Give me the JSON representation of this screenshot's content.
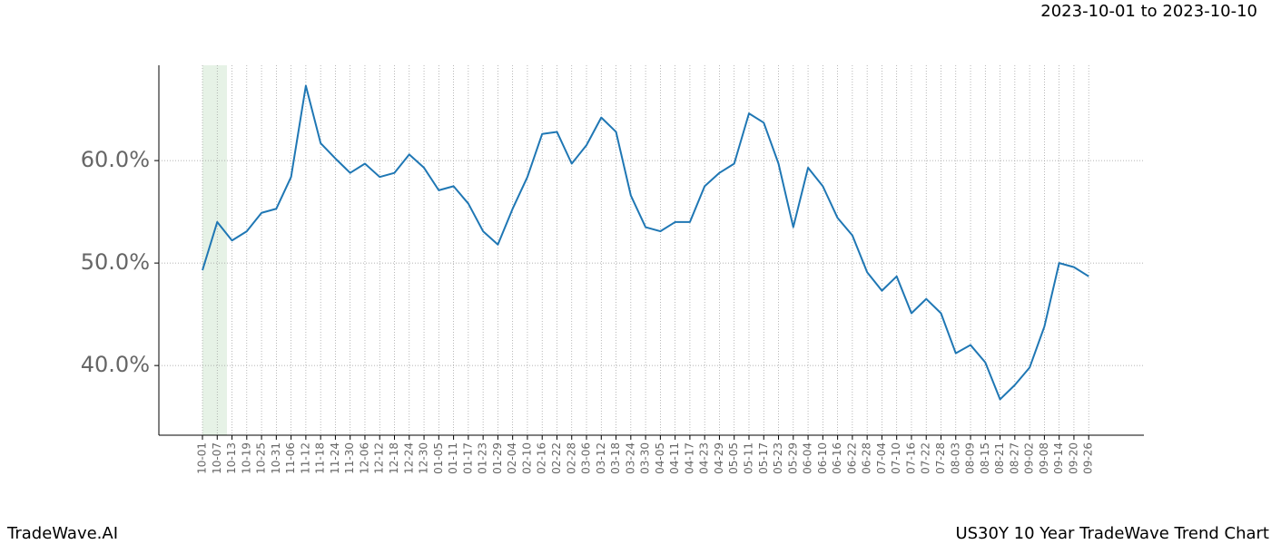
{
  "header": {
    "date_range": "2023-10-01 to 2023-10-10"
  },
  "footer": {
    "brand": "TradeWave.AI",
    "caption": "US30Y 10 Year TradeWave Trend Chart"
  },
  "chart_data": {
    "type": "line",
    "categories": [
      "10-01",
      "10-07",
      "10-13",
      "10-19",
      "10-25",
      "10-31",
      "11-06",
      "11-12",
      "11-18",
      "11-24",
      "11-30",
      "12-06",
      "12-12",
      "12-18",
      "12-24",
      "12-30",
      "01-05",
      "01-11",
      "01-17",
      "01-23",
      "01-29",
      "02-04",
      "02-10",
      "02-16",
      "02-22",
      "02-28",
      "03-06",
      "03-12",
      "03-18",
      "03-24",
      "03-30",
      "04-05",
      "04-11",
      "04-17",
      "04-23",
      "04-29",
      "05-05",
      "05-11",
      "05-17",
      "05-23",
      "05-29",
      "06-04",
      "06-10",
      "06-16",
      "06-22",
      "06-28",
      "07-04",
      "07-10",
      "07-16",
      "07-22",
      "07-28",
      "08-03",
      "08-09",
      "08-15",
      "08-21",
      "08-27",
      "09-02",
      "09-08",
      "09-14",
      "09-20",
      "09-26"
    ],
    "values": [
      49.3,
      54.0,
      52.2,
      53.1,
      54.9,
      55.3,
      58.4,
      67.3,
      61.7,
      60.2,
      58.8,
      59.7,
      58.4,
      58.8,
      60.6,
      59.3,
      57.1,
      57.5,
      55.8,
      53.1,
      51.8,
      55.3,
      58.4,
      62.6,
      62.8,
      59.7,
      61.5,
      64.2,
      62.8,
      56.6,
      53.5,
      53.1,
      54.0,
      54.0,
      57.5,
      58.8,
      59.7,
      64.6,
      63.7,
      59.7,
      53.5,
      59.3,
      57.5,
      54.4,
      52.7,
      49.1,
      47.3,
      48.7,
      45.1,
      46.5,
      45.1,
      41.2,
      42.0,
      40.3,
      36.7,
      38.1,
      39.8,
      43.8,
      50.0,
      49.6,
      48.7
    ],
    "color": "#1f77b4",
    "ylim": [
      33.2,
      69.3
    ],
    "yticks": [
      {
        "value": 40,
        "label": "40.0%"
      },
      {
        "value": 50,
        "label": "50.0%"
      },
      {
        "value": 60,
        "label": "60.0%"
      }
    ],
    "grid": true
  }
}
